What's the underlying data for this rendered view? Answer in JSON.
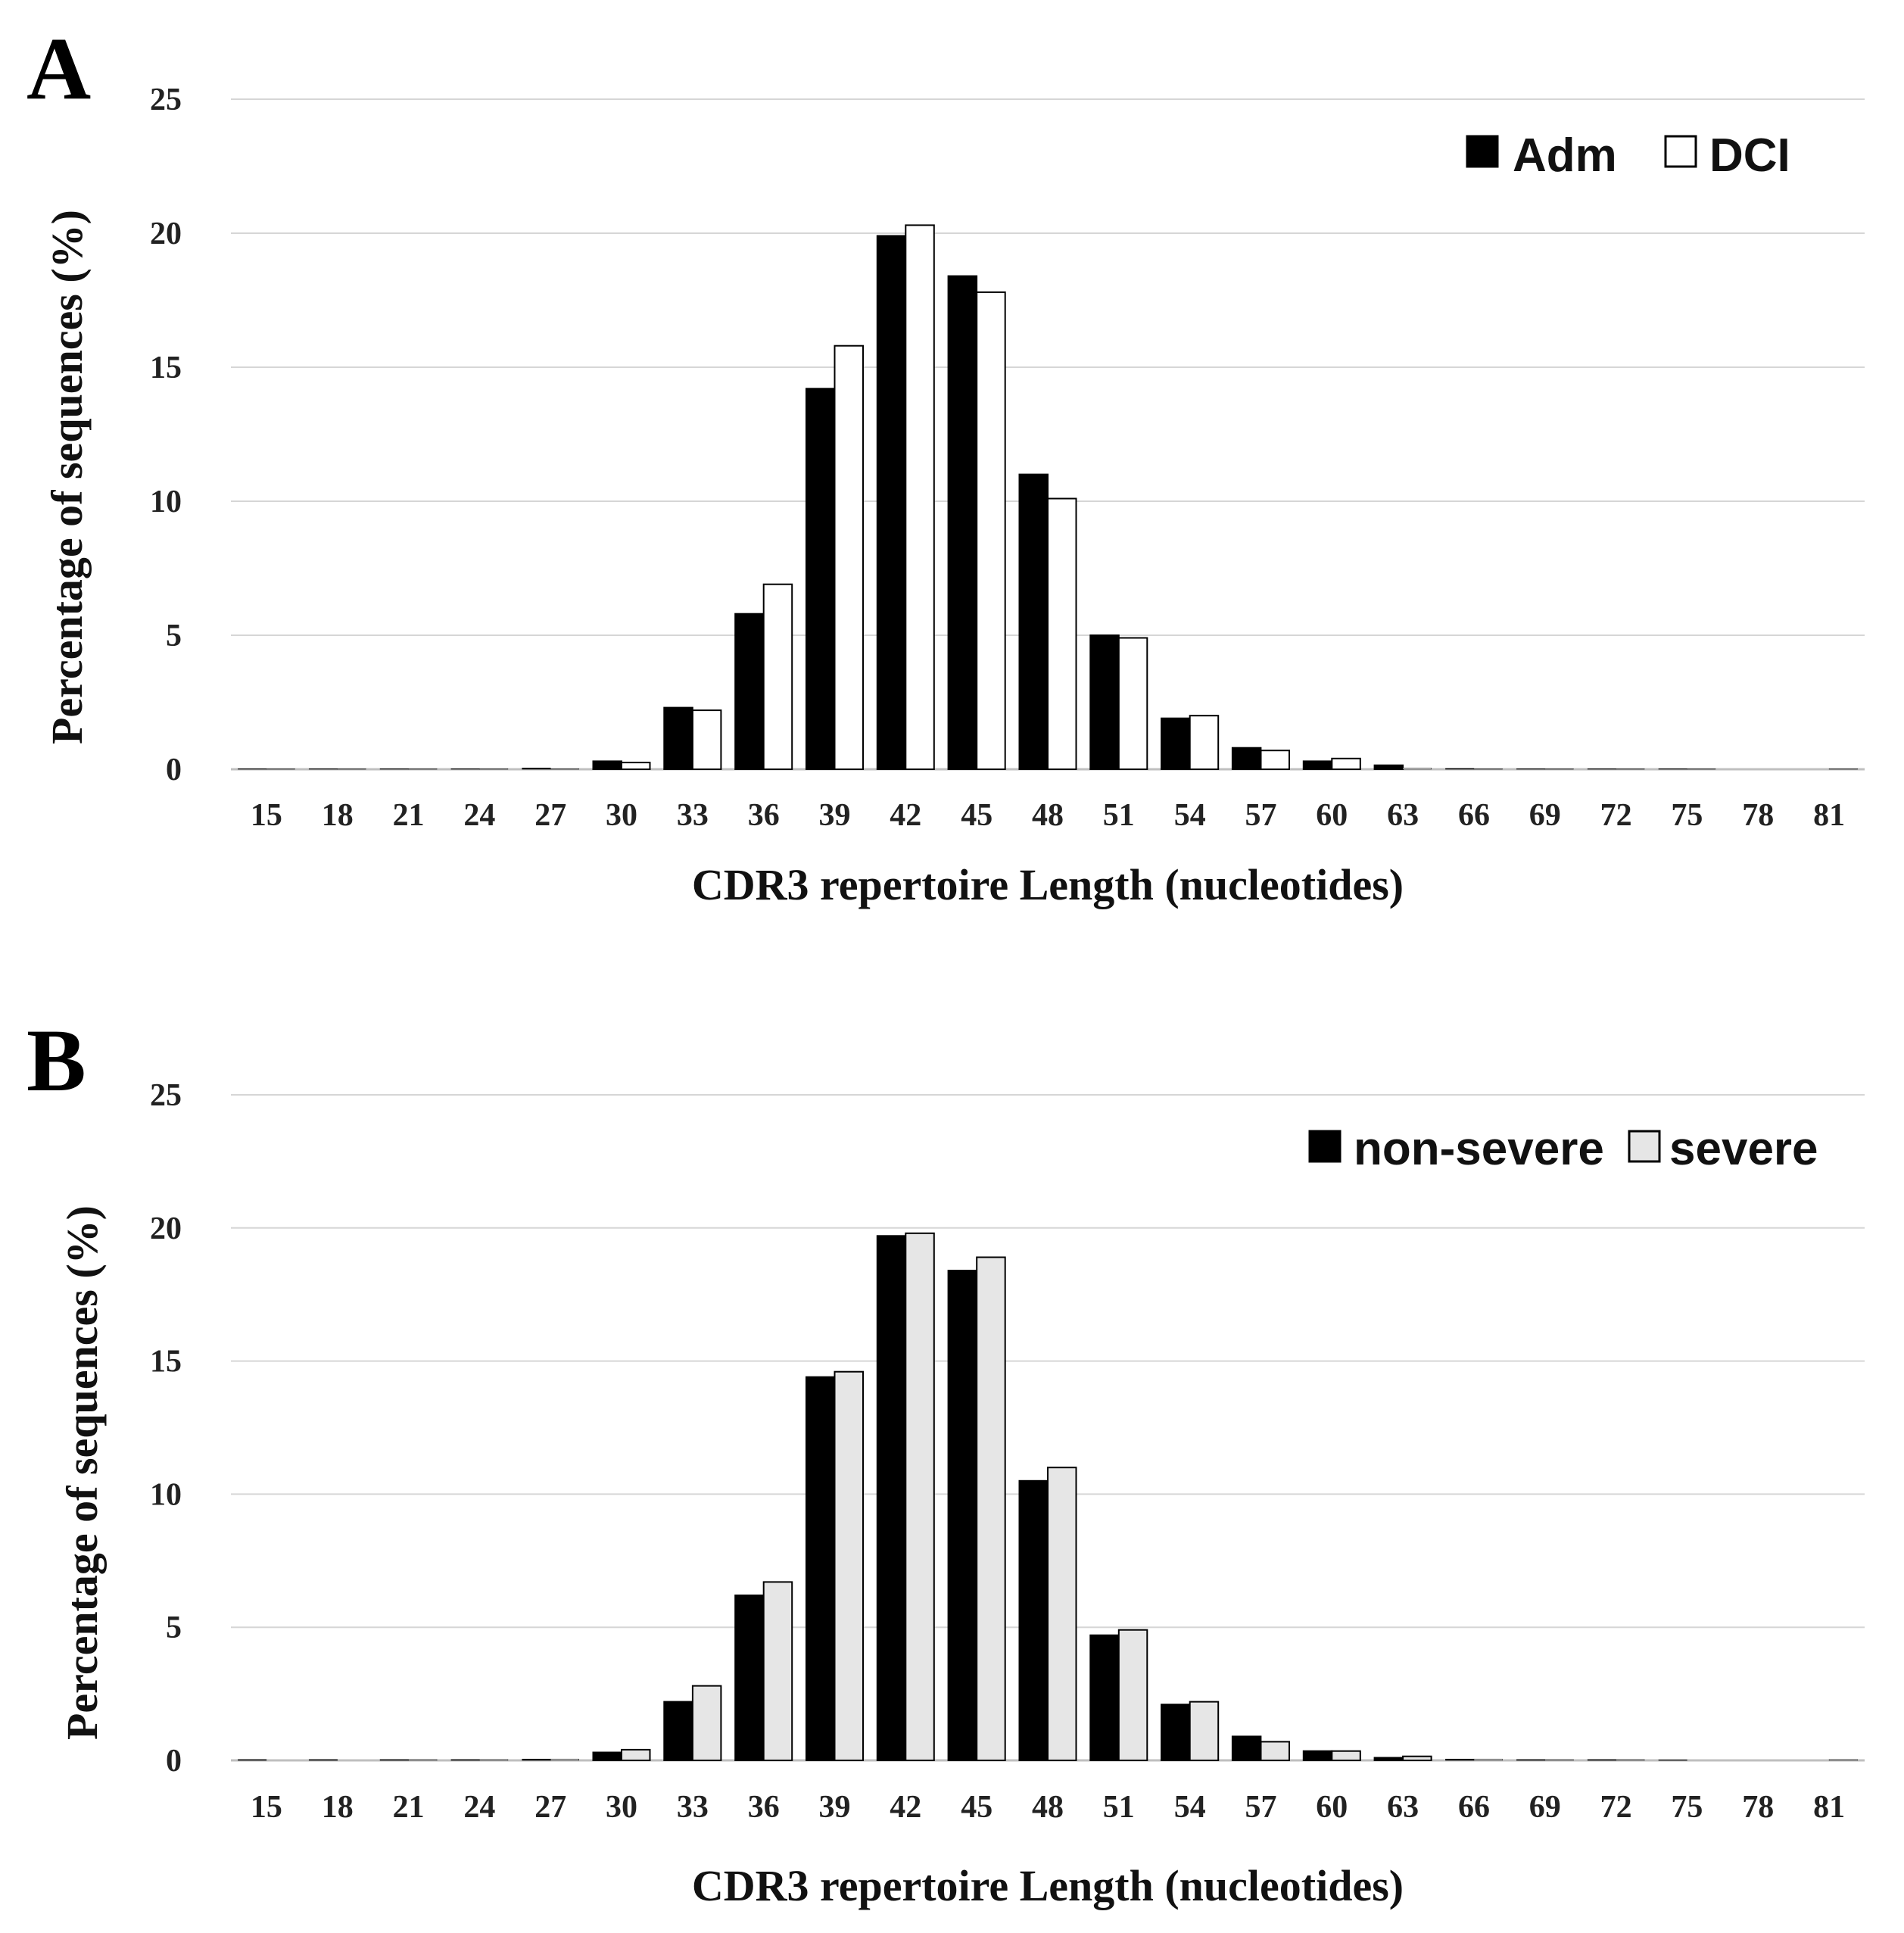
{
  "chart_data": [
    {
      "type": "bar",
      "panel_label": "A",
      "categories": [
        "15",
        "18",
        "21",
        "24",
        "27",
        "30",
        "33",
        "36",
        "39",
        "42",
        "45",
        "48",
        "51",
        "54",
        "57",
        "60",
        "63",
        "66",
        "69",
        "72",
        "75",
        "78",
        "81"
      ],
      "series": [
        {
          "name": "Adm",
          "color": "#000000",
          "values": [
            0.02,
            0.02,
            0.02,
            0.02,
            0.05,
            0.3,
            2.3,
            5.8,
            14.2,
            19.9,
            18.4,
            11.0,
            5.0,
            1.9,
            0.8,
            0.3,
            0.15,
            0.03,
            0.02,
            0.02,
            0.02,
            0.0,
            0.0
          ]
        },
        {
          "name": "DCI",
          "color": "#ffffff",
          "values": [
            0.02,
            0.02,
            0.02,
            0.02,
            0.02,
            0.25,
            2.2,
            6.9,
            15.8,
            20.3,
            17.8,
            10.1,
            4.9,
            2.0,
            0.7,
            0.4,
            0.05,
            0.02,
            0.02,
            0.02,
            0.02,
            0.0,
            0.02
          ]
        }
      ],
      "xlabel": "CDR3 repertoire Length (nucleotides)",
      "ylabel": "Percentage of sequences (%)",
      "ylim": [
        0,
        25
      ],
      "yticks": [
        "0",
        "5",
        "10",
        "15",
        "20",
        "25"
      ],
      "legend": "top-right",
      "grid": true
    },
    {
      "type": "bar",
      "panel_label": "B",
      "categories": [
        "15",
        "18",
        "21",
        "24",
        "27",
        "30",
        "33",
        "36",
        "39",
        "42",
        "45",
        "48",
        "51",
        "54",
        "57",
        "60",
        "63",
        "66",
        "69",
        "72",
        "75",
        "78",
        "81"
      ],
      "series": [
        {
          "name": "non-severe",
          "color": "#000000",
          "values": [
            0.03,
            0.03,
            0.03,
            0.03,
            0.05,
            0.3,
            2.2,
            6.2,
            14.4,
            19.7,
            18.4,
            10.5,
            4.7,
            2.1,
            0.9,
            0.35,
            0.1,
            0.05,
            0.03,
            0.03,
            0.02,
            0.0,
            0.0
          ]
        },
        {
          "name": "severe",
          "color": "#e6e6e6",
          "values": [
            0.0,
            0.0,
            0.03,
            0.03,
            0.05,
            0.4,
            2.8,
            6.7,
            14.6,
            19.8,
            18.9,
            11.0,
            4.9,
            2.2,
            0.7,
            0.35,
            0.15,
            0.05,
            0.03,
            0.03,
            0.0,
            0.0,
            0.03
          ]
        }
      ],
      "xlabel": "CDR3 repertoire Length (nucleotides)",
      "ylabel": "Percentage of sequences (%)",
      "ylim": [
        0,
        25
      ],
      "yticks": [
        "0",
        "5",
        "10",
        "15",
        "20",
        "25"
      ],
      "legend": "top-right",
      "grid": true
    }
  ]
}
